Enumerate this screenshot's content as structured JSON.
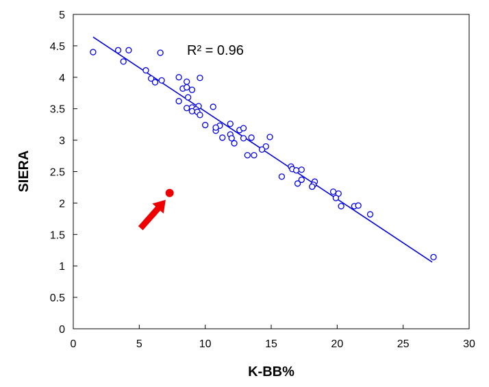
{
  "chart_data": {
    "type": "scatter",
    "title": "",
    "xlabel": "K-BB%",
    "ylabel": "SIERA",
    "xlim": [
      0,
      30
    ],
    "ylim": [
      0,
      5
    ],
    "xticks": [
      "0",
      "5",
      "10",
      "15",
      "20",
      "25",
      "30"
    ],
    "yticks": [
      "0",
      "0.5",
      "1",
      "1.5",
      "2",
      "2.5",
      "3",
      "3.5",
      "4",
      "4.5",
      "5"
    ],
    "grid": false,
    "legend": "none",
    "annotation": "R² = 0.96",
    "marker_color": "#0000ee",
    "trendline": {
      "x": [
        1.5,
        27.2
      ],
      "y": [
        4.64,
        1.06
      ],
      "color": "#0000dd"
    },
    "highlight_point": {
      "x": 7.3,
      "y": 2.16,
      "color": "#ee0000"
    },
    "arrow": {
      "color": "#ee0000",
      "tail": {
        "x": 5.1,
        "y": 1.6
      },
      "head": {
        "x": 7.0,
        "y": 2.05
      }
    },
    "points": [
      {
        "x": 1.5,
        "y": 4.4
      },
      {
        "x": 3.4,
        "y": 4.43
      },
      {
        "x": 3.8,
        "y": 4.25
      },
      {
        "x": 4.2,
        "y": 4.43
      },
      {
        "x": 6.6,
        "y": 4.39
      },
      {
        "x": 5.5,
        "y": 4.11
      },
      {
        "x": 5.9,
        "y": 3.98
      },
      {
        "x": 6.2,
        "y": 3.92
      },
      {
        "x": 6.7,
        "y": 3.95
      },
      {
        "x": 8.0,
        "y": 4.0
      },
      {
        "x": 9.6,
        "y": 3.99
      },
      {
        "x": 8.6,
        "y": 3.93
      },
      {
        "x": 8.3,
        "y": 3.82
      },
      {
        "x": 8.6,
        "y": 3.84
      },
      {
        "x": 9.0,
        "y": 3.8
      },
      {
        "x": 8.7,
        "y": 3.68
      },
      {
        "x": 8.0,
        "y": 3.62
      },
      {
        "x": 8.6,
        "y": 3.51
      },
      {
        "x": 9.0,
        "y": 3.52
      },
      {
        "x": 9.5,
        "y": 3.54
      },
      {
        "x": 9.3,
        "y": 3.49
      },
      {
        "x": 9.0,
        "y": 3.46
      },
      {
        "x": 9.4,
        "y": 3.45
      },
      {
        "x": 9.6,
        "y": 3.4
      },
      {
        "x": 10.6,
        "y": 3.53
      },
      {
        "x": 10.0,
        "y": 3.24
      },
      {
        "x": 11.1,
        "y": 3.23
      },
      {
        "x": 10.8,
        "y": 3.15
      },
      {
        "x": 10.8,
        "y": 3.2
      },
      {
        "x": 11.9,
        "y": 3.26
      },
      {
        "x": 12.6,
        "y": 3.16
      },
      {
        "x": 12.9,
        "y": 3.19
      },
      {
        "x": 11.9,
        "y": 3.09
      },
      {
        "x": 11.3,
        "y": 3.04
      },
      {
        "x": 12.0,
        "y": 3.03
      },
      {
        "x": 12.9,
        "y": 3.03
      },
      {
        "x": 13.5,
        "y": 3.04
      },
      {
        "x": 14.9,
        "y": 3.05
      },
      {
        "x": 12.2,
        "y": 2.95
      },
      {
        "x": 14.6,
        "y": 2.9
      },
      {
        "x": 14.3,
        "y": 2.85
      },
      {
        "x": 13.2,
        "y": 2.76
      },
      {
        "x": 13.7,
        "y": 2.76
      },
      {
        "x": 16.5,
        "y": 2.58
      },
      {
        "x": 16.6,
        "y": 2.54
      },
      {
        "x": 16.9,
        "y": 2.52
      },
      {
        "x": 17.3,
        "y": 2.53
      },
      {
        "x": 15.8,
        "y": 2.42
      },
      {
        "x": 17.3,
        "y": 2.37
      },
      {
        "x": 17.0,
        "y": 2.31
      },
      {
        "x": 18.3,
        "y": 2.34
      },
      {
        "x": 18.2,
        "y": 2.29
      },
      {
        "x": 18.1,
        "y": 2.26
      },
      {
        "x": 19.7,
        "y": 2.18
      },
      {
        "x": 20.1,
        "y": 2.15
      },
      {
        "x": 19.9,
        "y": 2.08
      },
      {
        "x": 20.3,
        "y": 1.95
      },
      {
        "x": 21.3,
        "y": 1.95
      },
      {
        "x": 21.6,
        "y": 1.96
      },
      {
        "x": 22.5,
        "y": 1.82
      },
      {
        "x": 27.3,
        "y": 1.14
      }
    ]
  }
}
